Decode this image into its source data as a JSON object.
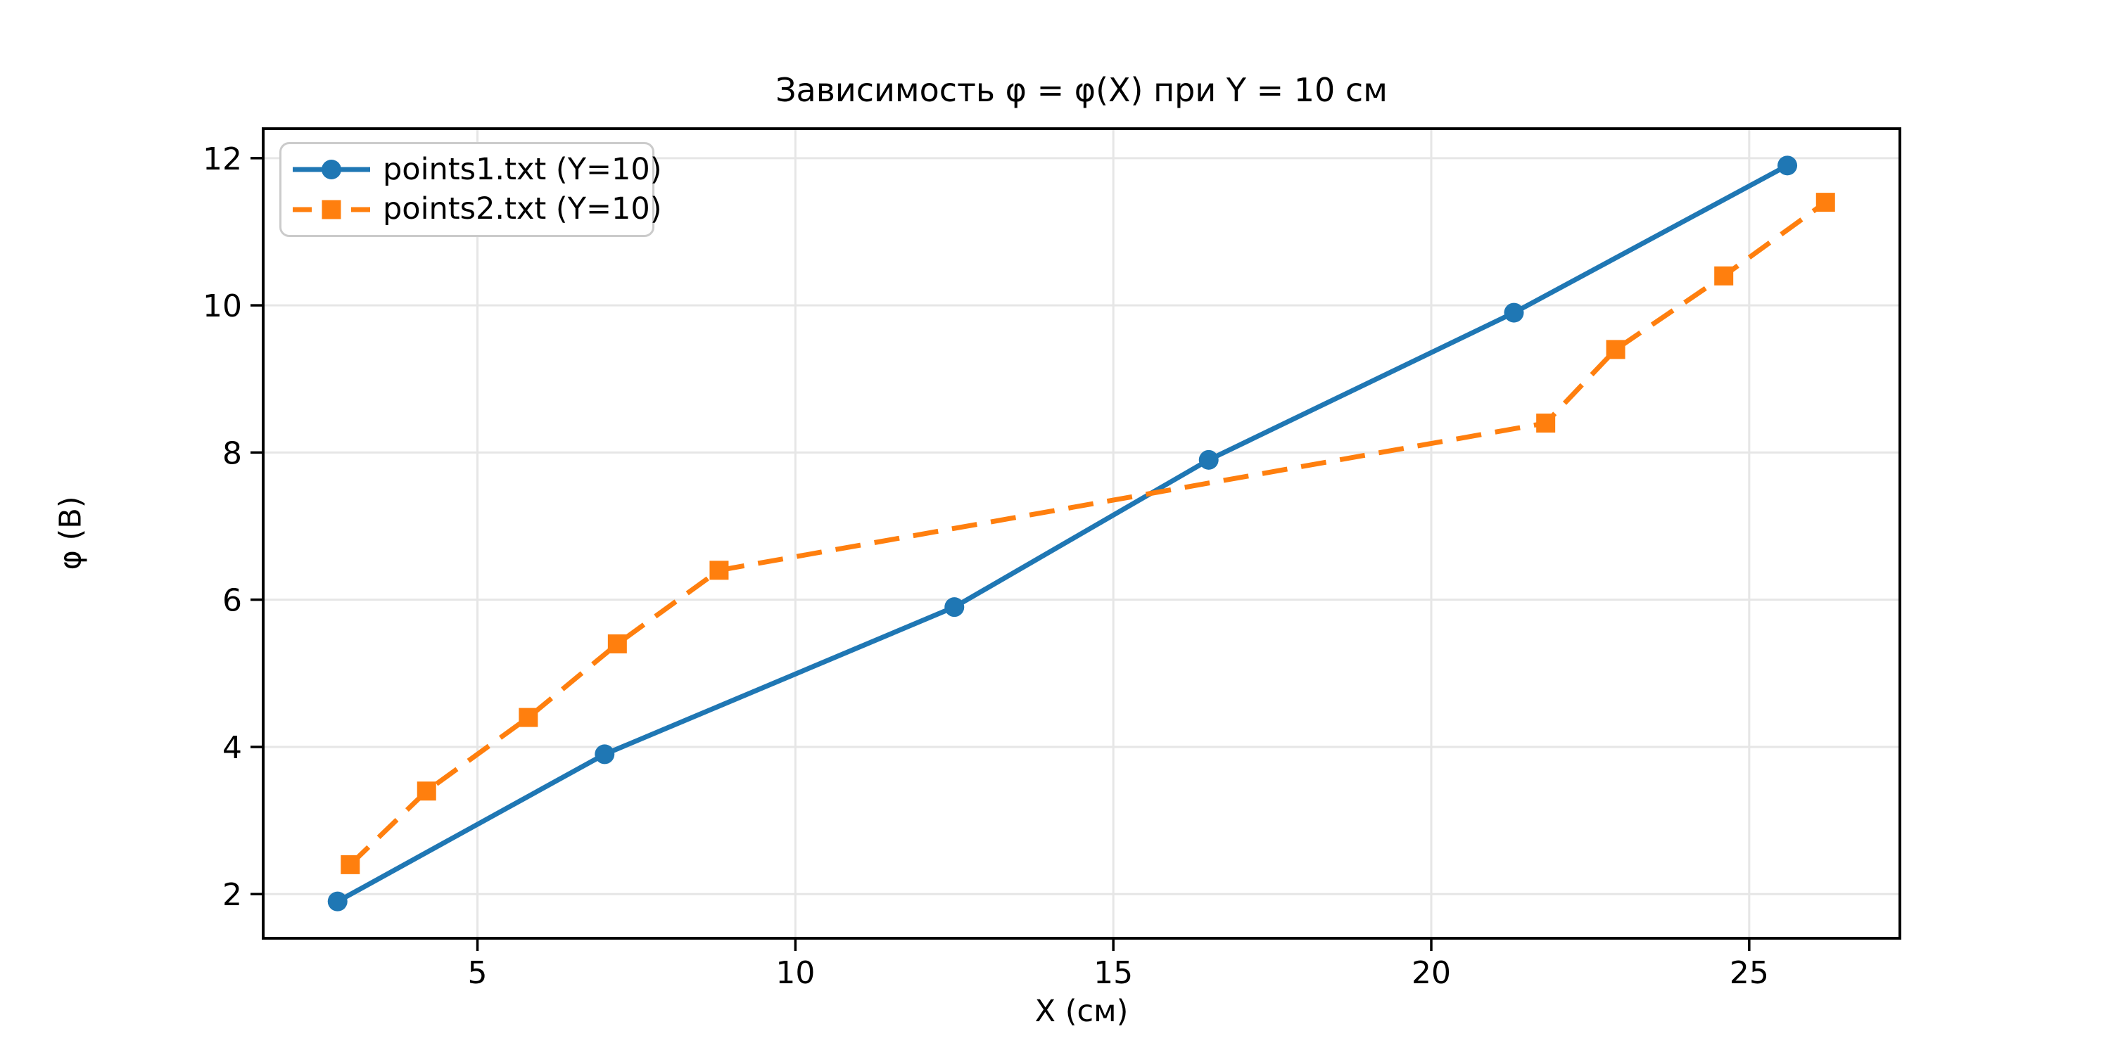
{
  "chart_data": {
    "type": "line",
    "title": "Зависимость φ = φ(X) при Y = 10 см",
    "xlabel": "X (см)",
    "ylabel": "φ (В)",
    "xlim": [
      1.63,
      27.37
    ],
    "ylim": [
      1.4,
      12.4
    ],
    "xticks": [
      5,
      10,
      15,
      20,
      25
    ],
    "yticks": [
      2,
      4,
      6,
      8,
      10,
      12
    ],
    "grid": true,
    "grid_color": "#e6e6e6",
    "axis_color": "#000000",
    "background": "#ffffff",
    "legend": {
      "position": "upper left",
      "border_color": "#cbcbcb"
    },
    "series": [
      {
        "label": "points1.txt (Y=10)",
        "color": "#1f77b4",
        "linestyle": "solid",
        "marker": "circle",
        "x": [
          2.8,
          7.0,
          12.5,
          16.5,
          21.3,
          25.6
        ],
        "y": [
          1.9,
          3.9,
          5.9,
          7.9,
          9.9,
          11.9
        ]
      },
      {
        "label": "points2.txt (Y=10)",
        "color": "#ff7f0e",
        "linestyle": "dashed",
        "marker": "square",
        "x": [
          3.0,
          4.2,
          5.8,
          7.2,
          8.8,
          21.8,
          22.9,
          24.6,
          26.2
        ],
        "y": [
          2.4,
          3.4,
          4.4,
          5.4,
          6.4,
          8.4,
          9.4,
          10.4,
          11.4
        ]
      }
    ]
  }
}
